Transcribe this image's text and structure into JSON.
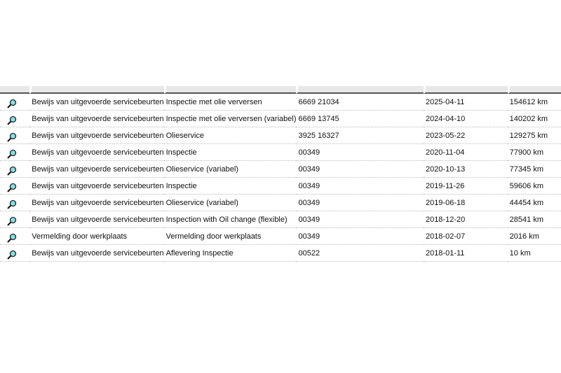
{
  "columns": [
    "",
    "",
    "",
    "",
    "",
    ""
  ],
  "rows": [
    {
      "type": "Bewijs van uitgevoerde servicebeurten",
      "service": "Inspectie met olie verversen",
      "code": "6669 21034",
      "date": "2025-04-11",
      "mileage": "154612 km"
    },
    {
      "type": "Bewijs van uitgevoerde servicebeurten",
      "service": "Inspectie met olie verversen (variabel)",
      "code": "6669 13745",
      "date": "2024-04-10",
      "mileage": "140202 km"
    },
    {
      "type": "Bewijs van uitgevoerde servicebeurten",
      "service": "Olieservice",
      "code": "3925 16327",
      "date": "2023-05-22",
      "mileage": "129275 km"
    },
    {
      "type": "Bewijs van uitgevoerde servicebeurten",
      "service": "Inspectie",
      "code": "00349",
      "date": "2020-11-04",
      "mileage": "77900 km"
    },
    {
      "type": "Bewijs van uitgevoerde servicebeurten",
      "service": "Olieservice (variabel)",
      "code": "00349",
      "date": "2020-10-13",
      "mileage": "77345 km"
    },
    {
      "type": "Bewijs van uitgevoerde servicebeurten",
      "service": "Inspectie",
      "code": "00349",
      "date": "2019-11-26",
      "mileage": "59606 km"
    },
    {
      "type": "Bewijs van uitgevoerde servicebeurten",
      "service": "Olieservice (variabel)",
      "code": "00349",
      "date": "2019-06-18",
      "mileage": "44454 km"
    },
    {
      "type": "Bewijs van uitgevoerde servicebeurten",
      "service": "Inspection with Oil change (flexible)",
      "code": "00349",
      "date": "2018-12-20",
      "mileage": "28541 km"
    },
    {
      "type": "Vermelding door werkplaats",
      "service": "Vermelding door werkplaats",
      "code": "00349",
      "date": "2018-02-07",
      "mileage": "2016 km"
    },
    {
      "type": "Bewijs van uitgevoerde servicebeurten",
      "service": "Aflevering Inspectie",
      "code": "00522",
      "date": "2018-01-11",
      "mileage": "10 km"
    }
  ],
  "icon": "magnifier-icon",
  "colors": {
    "header": "#e8e8e8",
    "lens": "#7fe0e8"
  }
}
